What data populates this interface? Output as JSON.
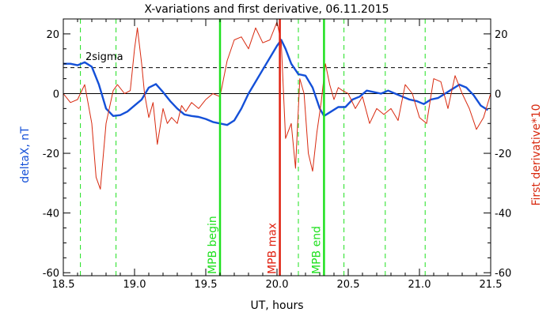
{
  "chart_data": {
    "type": "line",
    "title": "X-variations and first derivative, 06.11.2015",
    "xlabel": "UT, hours",
    "ylabel_left": "deltaX, nT",
    "ylabel_right": "First derivative*10",
    "xlim": [
      18.5,
      21.5
    ],
    "ylim": [
      -61,
      25
    ],
    "x_ticks": [
      "18.5",
      "19.0",
      "19.5",
      "20.0",
      "20.5",
      "21.0",
      "21.5"
    ],
    "y_ticks_left": [
      "20",
      "0",
      "-20",
      "-40",
      "-60"
    ],
    "y_ticks_right": [
      "20",
      "0",
      "-20",
      "-40",
      "-60"
    ],
    "colors": {
      "deltaX": "#1450d8",
      "derivative": "#d82a10",
      "mpb_boundary": "#1ee01e",
      "mpb_max": "#e02010",
      "dashed_verticals": "#1ee01e",
      "axes": "#000000"
    },
    "threshold": {
      "label": "2sigma",
      "y": 8.7
    },
    "zero_line_y": 0,
    "dashed_vertical_x": [
      18.62,
      18.87,
      20.15,
      20.47,
      20.76,
      21.04
    ],
    "mpb_lines": [
      {
        "label": "MPB begin",
        "x": 19.6,
        "kind": "boundary"
      },
      {
        "label": "MPB max",
        "x": 20.02,
        "kind": "max"
      },
      {
        "label": "MPB end",
        "x": 20.33,
        "kind": "boundary"
      }
    ],
    "series": [
      {
        "name": "deltaX",
        "axis": "left",
        "x": [
          18.5,
          18.55,
          18.6,
          18.65,
          18.7,
          18.75,
          18.8,
          18.85,
          18.9,
          18.95,
          19.0,
          19.05,
          19.1,
          19.15,
          19.2,
          19.25,
          19.3,
          19.35,
          19.4,
          19.45,
          19.5,
          19.55,
          19.6,
          19.65,
          19.7,
          19.75,
          19.8,
          19.85,
          19.9,
          19.95,
          20.0,
          20.03,
          20.06,
          20.1,
          20.15,
          20.2,
          20.25,
          20.3,
          20.33,
          20.38,
          20.43,
          20.48,
          20.53,
          20.58,
          20.63,
          20.68,
          20.73,
          20.78,
          20.83,
          20.88,
          20.93,
          20.98,
          21.03,
          21.08,
          21.13,
          21.18,
          21.23,
          21.28,
          21.33,
          21.38,
          21.43,
          21.48
        ],
        "y": [
          10,
          10,
          9.5,
          10.5,
          9,
          3,
          -5,
          -7.5,
          -7.2,
          -6,
          -4,
          -2,
          2,
          3.2,
          0.5,
          -2.5,
          -5,
          -7,
          -7.5,
          -7.8,
          -8.5,
          -9.5,
          -10,
          -10.5,
          -9,
          -5,
          0,
          4,
          8,
          12,
          16,
          18,
          15,
          10,
          6.5,
          6,
          2,
          -5,
          -7.5,
          -6,
          -4.5,
          -4.5,
          -2,
          -1,
          1,
          0.5,
          0,
          1,
          0,
          -1,
          -2,
          -2.5,
          -3.5,
          -2,
          -1.5,
          0,
          1.5,
          3,
          2,
          -0.5,
          -4,
          -5.5
        ]
      },
      {
        "name": "First derivative*10",
        "axis": "right",
        "x": [
          18.5,
          18.55,
          18.6,
          18.65,
          18.7,
          18.73,
          18.76,
          18.8,
          18.85,
          18.88,
          18.93,
          18.97,
          19.0,
          19.02,
          19.05,
          19.07,
          19.1,
          19.13,
          19.16,
          19.2,
          19.23,
          19.26,
          19.3,
          19.33,
          19.36,
          19.4,
          19.45,
          19.5,
          19.55,
          19.6,
          19.65,
          19.7,
          19.75,
          19.8,
          19.85,
          19.9,
          19.95,
          20.0,
          20.03,
          20.06,
          20.1,
          20.13,
          20.16,
          20.19,
          20.22,
          20.25,
          20.28,
          20.31,
          20.34,
          20.37,
          20.4,
          20.43,
          20.46,
          20.5,
          20.55,
          20.6,
          20.65,
          20.7,
          20.75,
          20.8,
          20.85,
          20.9,
          20.95,
          21.0,
          21.05,
          21.1,
          21.15,
          21.2,
          21.25,
          21.3,
          21.35,
          21.4,
          21.45,
          21.5
        ],
        "y": [
          0,
          -3,
          -2,
          3,
          -10,
          -28,
          -32,
          -10,
          1,
          3,
          0,
          1,
          15,
          22,
          10,
          0,
          -8,
          -3,
          -17,
          -5,
          -10,
          -8,
          -10,
          -4,
          -6,
          -3,
          -5,
          -2,
          0,
          -1,
          11,
          18,
          19,
          15,
          22,
          17,
          18,
          24,
          17,
          -15,
          -10,
          -25,
          5,
          0,
          -20,
          -26,
          -13,
          -3,
          10,
          3,
          -2,
          2,
          1,
          0,
          -5,
          -1,
          -10,
          -5,
          -7,
          -5,
          -9,
          3,
          0,
          -8,
          -10,
          5,
          4,
          -5,
          6,
          0,
          -5,
          -12,
          -8,
          0
        ]
      }
    ]
  }
}
